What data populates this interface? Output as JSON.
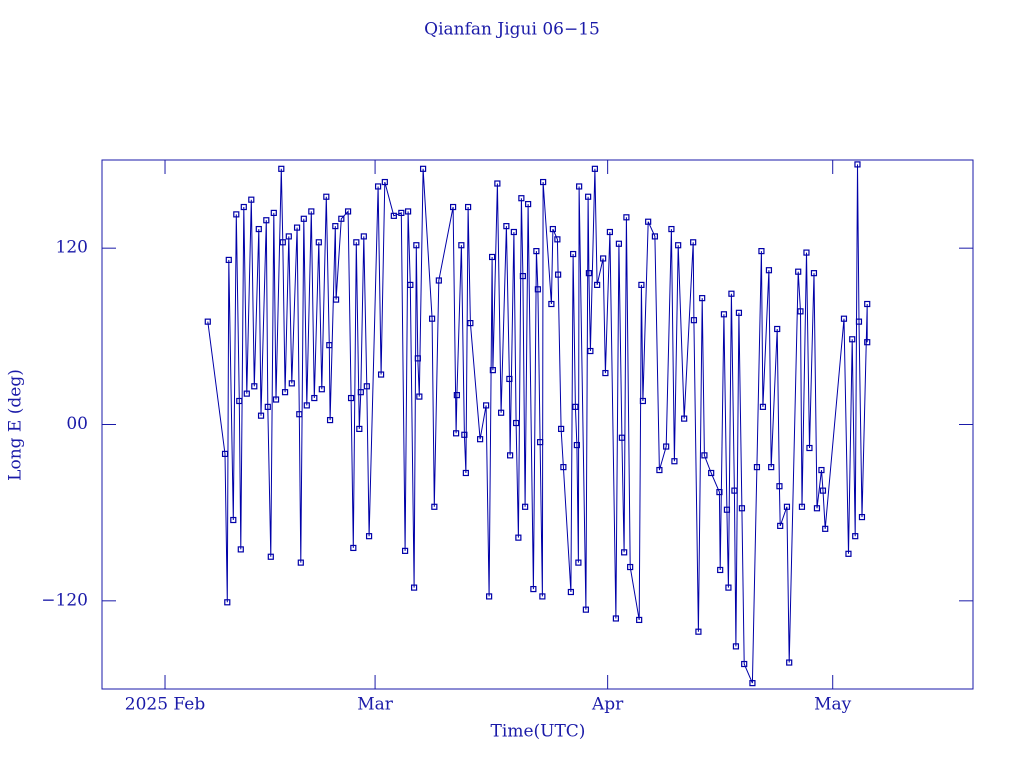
{
  "chart_data": {
    "type": "line",
    "title": "Qianfan Jigui 06−15",
    "x_label": "Time(UTC)",
    "y_label": "Long E (deg)",
    "color": "#0000a8",
    "xlim": [
      -8.4,
      107.7
    ],
    "ylim": [
      -180,
      180
    ],
    "xticks": [
      {
        "value": 0,
        "label": "2025 Feb"
      },
      {
        "value": 28,
        "label": "Mar"
      },
      {
        "value": 59,
        "label": "Apr"
      },
      {
        "value": 89,
        "label": "May"
      }
    ],
    "yticks": [
      {
        "value": -120,
        "label": "−120"
      },
      {
        "value": 0,
        "label": "00"
      },
      120
    ],
    "x": [
      5.7,
      8.0,
      8.3,
      8.5,
      9.1,
      9.5,
      9.9,
      10.1,
      10.5,
      10.9,
      11.5,
      11.9,
      12.5,
      12.8,
      13.5,
      13.7,
      14.1,
      14.5,
      14.8,
      15.5,
      15.7,
      16.0,
      16.5,
      16.9,
      17.6,
      17.9,
      18.1,
      18.5,
      18.9,
      19.5,
      19.9,
      20.5,
      20.9,
      21.5,
      21.9,
      22.0,
      22.7,
      22.8,
      23.5,
      24.4,
      24.8,
      25.1,
      25.5,
      25.9,
      26.1,
      26.5,
      26.9,
      27.2,
      28.4,
      28.8,
      29.3,
      30.5,
      31.5,
      32.0,
      32.4,
      32.7,
      33.2,
      33.5,
      33.7,
      33.9,
      34.4,
      35.6,
      35.9,
      36.5,
      38.4,
      38.8,
      38.9,
      39.5,
      39.9,
      40.1,
      40.4,
      40.7,
      42.0,
      42.8,
      43.2,
      43.6,
      43.7,
      44.3,
      44.8,
      45.5,
      45.9,
      46.0,
      46.5,
      46.8,
      47.1,
      47.5,
      47.7,
      48.0,
      48.4,
      49.1,
      49.5,
      49.7,
      50.0,
      50.3,
      50.4,
      51.5,
      51.7,
      52.3,
      52.4,
      52.8,
      53.1,
      54.1,
      54.4,
      54.7,
      54.9,
      55.1,
      55.2,
      56.1,
      56.4,
      56.5,
      56.7,
      57.3,
      57.6,
      58.4,
      58.7,
      59.3,
      60.1,
      60.5,
      60.9,
      61.2,
      61.5,
      62.0,
      63.2,
      63.5,
      63.7,
      64.4,
      65.3,
      65.9,
      66.8,
      67.5,
      67.9,
      68.4,
      69.2,
      70.4,
      70.5,
      71.1,
      71.6,
      71.9,
      72.8,
      73.9,
      74.0,
      74.5,
      74.9,
      75.1,
      75.5,
      75.9,
      76.1,
      76.5,
      76.9,
      77.2,
      78.3,
      78.9,
      79.5,
      79.7,
      80.5,
      80.8,
      81.6,
      81.9,
      82.0,
      82.9,
      83.2,
      84.4,
      84.7,
      84.9,
      85.5,
      85.9,
      86.5,
      86.9,
      87.5,
      87.7,
      88.0,
      90.5,
      91.1,
      91.6,
      92.0,
      92.3,
      92.5,
      92.9,
      93.6,
      93.6
    ],
    "values": [
      70,
      -20,
      -121,
      112,
      -65,
      143,
      16,
      -85,
      148,
      21,
      153,
      26,
      133,
      6,
      139,
      12,
      -90,
      144,
      17,
      174,
      124,
      22,
      128,
      28,
      134,
      7,
      -94,
      140,
      13,
      145,
      18,
      124,
      24,
      155,
      54,
      3,
      135,
      85,
      140,
      145,
      18,
      -84,
      124,
      -3,
      22,
      128,
      26,
      -76,
      162,
      34,
      165,
      142,
      144,
      -86,
      145,
      95,
      -111,
      122,
      45,
      19,
      174,
      72,
      -56,
      98,
      148,
      -6,
      20,
      122,
      -7,
      -33,
      148,
      69,
      -10,
      13,
      -117,
      114,
      37,
      164,
      8,
      135,
      31,
      -21,
      131,
      1,
      -77,
      154,
      101,
      -56,
      150,
      -112,
      118,
      92,
      -12,
      -117,
      165,
      82,
      133,
      126,
      102,
      -3,
      -29,
      -114,
      116,
      12,
      -14,
      -94,
      162,
      -126,
      155,
      103,
      50,
      174,
      95,
      113,
      35,
      131,
      -132,
      123,
      -9,
      -87,
      141,
      -97,
      -133,
      95,
      16,
      138,
      128,
      -31,
      -15,
      133,
      -25,
      122,
      4,
      124,
      71,
      -141,
      86,
      -21,
      -33,
      -46,
      -99,
      75,
      -58,
      -111,
      89,
      -45,
      -151,
      76,
      -57,
      -163,
      -176,
      -29,
      118,
      12,
      105,
      -29,
      65,
      -42,
      -69,
      -56,
      -162,
      104,
      77,
      -56,
      117,
      -16,
      103,
      -57,
      -31,
      -45,
      -71,
      72,
      -88,
      58,
      -76,
      177,
      70,
      -63,
      82,
      56
    ]
  }
}
